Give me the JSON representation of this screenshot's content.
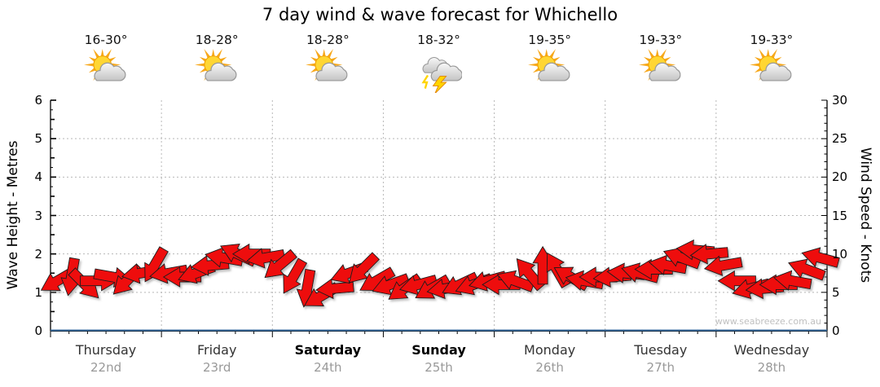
{
  "title": "7 day wind & wave forecast for Whichello",
  "watermark": "www.seabreeze.com.au",
  "forecast_days": [
    {
      "day": "Thursday",
      "date": "22nd",
      "temp": "16-30°",
      "icon": "partly-cloudy",
      "weekend": false
    },
    {
      "day": "Friday",
      "date": "23rd",
      "temp": "18-28°",
      "icon": "partly-cloudy",
      "weekend": false
    },
    {
      "day": "Saturday",
      "date": "24th",
      "temp": "18-28°",
      "icon": "partly-cloudy",
      "weekend": true
    },
    {
      "day": "Sunday",
      "date": "25th",
      "temp": "18-32°",
      "icon": "thunderstorm",
      "weekend": true
    },
    {
      "day": "Monday",
      "date": "26th",
      "temp": "19-35°",
      "icon": "partly-cloudy",
      "weekend": false
    },
    {
      "day": "Tuesday",
      "date": "27th",
      "temp": "19-33°",
      "icon": "partly-cloudy",
      "weekend": false
    },
    {
      "day": "Wednesday",
      "date": "28th",
      "temp": "19-33°",
      "icon": "partly-cloudy",
      "weekend": false
    }
  ],
  "chart_data": {
    "type": "wind-barb-series",
    "title": "7 day wind & wave forecast for Whichello",
    "left_axis": {
      "label": "Wave Height - Metres",
      "min": 0,
      "max": 6,
      "ticks": [
        0,
        1,
        2,
        3,
        4,
        5,
        6
      ]
    },
    "right_axis": {
      "label": "Wind Speed - Knots",
      "min": 0,
      "max": 30,
      "ticks": [
        0,
        5,
        10,
        15,
        20,
        25,
        30
      ]
    },
    "grid": "dotted",
    "days": 7,
    "points_per_day": 8,
    "wave_height_metres_constant": 0,
    "wind": {
      "unit": "knots",
      "knots": [
        6.5,
        7,
        6,
        6.5,
        7,
        6.5,
        7.5,
        8.5,
        7.5,
        7,
        7.5,
        8.5,
        9.5,
        10,
        10,
        9.5,
        8.5,
        7,
        5.5,
        4.5,
        5.5,
        7.5,
        8,
        6.5,
        6,
        5.5,
        6,
        5.5,
        5.5,
        6,
        6,
        6.5,
        6,
        6.5,
        7.5,
        8.5,
        8,
        7,
        6.5,
        7,
        7,
        7.5,
        7.5,
        8,
        8.5,
        9.5,
        10.5,
        10,
        8.5,
        6.5,
        5.5,
        5.5,
        6,
        6.5,
        8,
        9.5
      ],
      "direction_deg_toward": [
        240,
        190,
        135,
        90,
        100,
        225,
        260,
        210,
        260,
        270,
        250,
        265,
        280,
        295,
        270,
        260,
        230,
        210,
        190,
        240,
        265,
        250,
        225,
        240,
        250,
        235,
        255,
        240,
        260,
        245,
        250,
        255,
        270,
        290,
        320,
        0,
        330,
        300,
        280,
        270,
        265,
        275,
        285,
        270,
        280,
        290,
        275,
        265,
        260,
        270,
        255,
        265,
        270,
        280,
        290,
        285
      ]
    }
  },
  "colors": {
    "arrow_red": "#ee1111",
    "arrow_outline": "#1a1a1a",
    "wave_line_blue": "#336699",
    "grid_gray": "#b8b8b8",
    "axis_black": "#000000",
    "date_gray": "#999999",
    "watermark_gray": "#c0c0c0",
    "sun_yellow": "#ffd633",
    "sun_ray_orange": "#f7a81b",
    "cloud_gray": "#dcdcdc",
    "lightning_yellow": "#ffd400"
  }
}
